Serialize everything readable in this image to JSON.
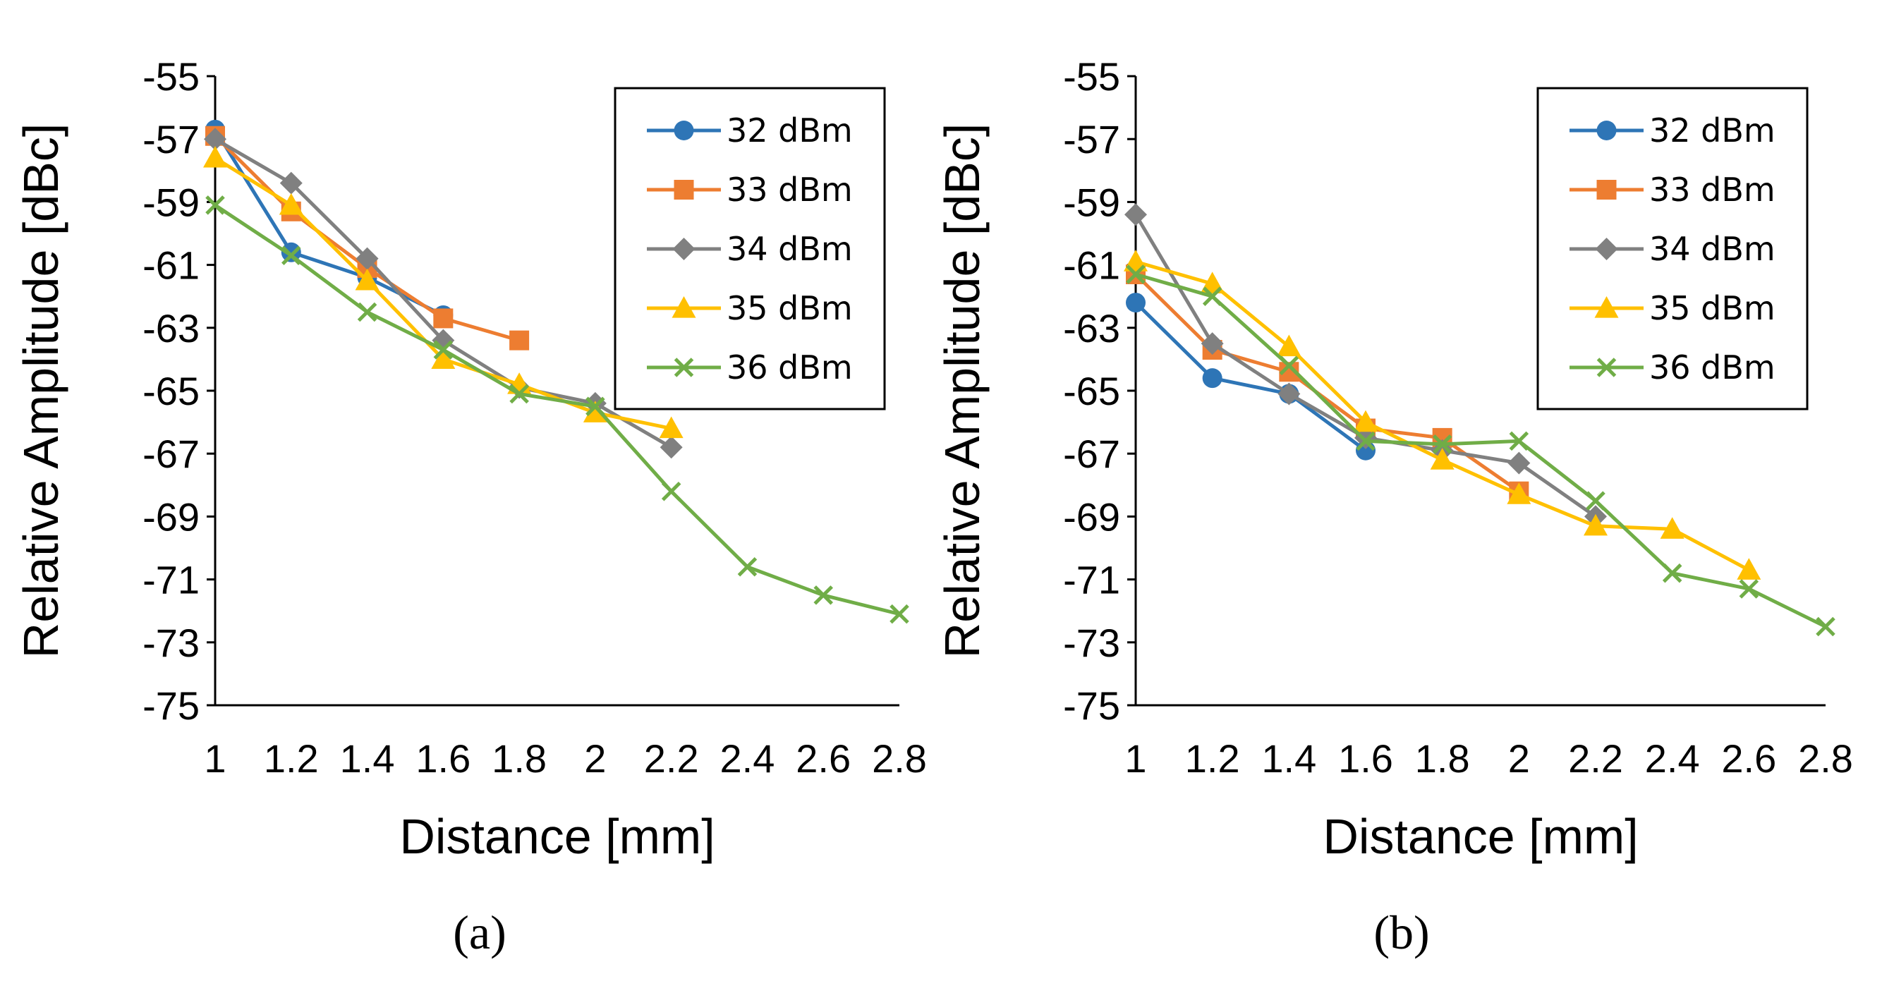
{
  "chart_data": [
    {
      "type": "line",
      "panel_label": "(a)",
      "xlabel": "Distance [mm]",
      "ylabel": "Relative Amplitude [dBc]",
      "xlim": [
        1,
        2.8
      ],
      "ylim": [
        -75,
        -55
      ],
      "x_ticks": [
        "1",
        "1.2",
        "1.4",
        "1.6",
        "1.8",
        "2",
        "2.2",
        "2.4",
        "2.6",
        "2.8"
      ],
      "y_ticks": [
        "-55",
        "-57",
        "-59",
        "-61",
        "-63",
        "-65",
        "-67",
        "-69",
        "-71",
        "-73",
        "-75"
      ],
      "legend_position": "top-right",
      "series": [
        {
          "name": "32 dBm",
          "color": "#2E75B6",
          "marker": "circle",
          "x": [
            1,
            1.2,
            1.4,
            1.6
          ],
          "y": [
            -56.7,
            -60.6,
            -61.4,
            -62.6
          ]
        },
        {
          "name": "33 dBm",
          "color": "#ED7D31",
          "marker": "square",
          "x": [
            1,
            1.2,
            1.4,
            1.6,
            1.8
          ],
          "y": [
            -56.9,
            -59.3,
            -61.1,
            -62.7,
            -63.4
          ]
        },
        {
          "name": "34 dBm",
          "color": "#808080",
          "marker": "diamond",
          "x": [
            1,
            1.2,
            1.4,
            1.6,
            1.8,
            2,
            2.2
          ],
          "y": [
            -57.0,
            -58.4,
            -60.8,
            -63.4,
            -64.9,
            -65.4,
            -66.8
          ]
        },
        {
          "name": "35 dBm",
          "color": "#FFC000",
          "marker": "triangle",
          "x": [
            1,
            1.2,
            1.4,
            1.6,
            1.8,
            2,
            2.2
          ],
          "y": [
            -57.6,
            -59.1,
            -61.5,
            -64.0,
            -64.8,
            -65.7,
            -66.2
          ]
        },
        {
          "name": "36 dBm",
          "color": "#70AD47",
          "marker": "x",
          "x": [
            1,
            1.2,
            1.4,
            1.6,
            1.8,
            2,
            2.2,
            2.4,
            2.6,
            2.8
          ],
          "y": [
            -59.1,
            -60.7,
            -62.5,
            -63.7,
            -65.1,
            -65.5,
            -68.2,
            -70.6,
            -71.5,
            -72.1
          ]
        }
      ]
    },
    {
      "type": "line",
      "panel_label": "(b)",
      "xlabel": "Distance [mm]",
      "ylabel": "Relative Amplitude [dBc]",
      "xlim": [
        1,
        2.8
      ],
      "ylim": [
        -75,
        -55
      ],
      "x_ticks": [
        "1",
        "1.2",
        "1.4",
        "1.6",
        "1.8",
        "2",
        "2.2",
        "2.4",
        "2.6",
        "2.8"
      ],
      "y_ticks": [
        "-55",
        "-57",
        "-59",
        "-61",
        "-63",
        "-65",
        "-67",
        "-69",
        "-71",
        "-73",
        "-75"
      ],
      "legend_position": "top-right",
      "series": [
        {
          "name": "32 dBm",
          "color": "#2E75B6",
          "marker": "circle",
          "x": [
            1,
            1.2,
            1.4,
            1.6
          ],
          "y": [
            -62.2,
            -64.6,
            -65.1,
            -66.9
          ]
        },
        {
          "name": "33 dBm",
          "color": "#ED7D31",
          "marker": "square",
          "x": [
            1,
            1.2,
            1.4,
            1.6,
            1.8,
            2
          ],
          "y": [
            -61.3,
            -63.7,
            -64.4,
            -66.2,
            -66.5,
            -68.2
          ]
        },
        {
          "name": "34 dBm",
          "color": "#808080",
          "marker": "diamond",
          "x": [
            1,
            1.2,
            1.4,
            1.6,
            1.8,
            2,
            2.2
          ],
          "y": [
            -59.4,
            -63.5,
            -65.1,
            -66.5,
            -66.9,
            -67.3,
            -69.0
          ]
        },
        {
          "name": "35 dBm",
          "color": "#FFC000",
          "marker": "triangle",
          "x": [
            1,
            1.2,
            1.4,
            1.6,
            1.8,
            2,
            2.2,
            2.4,
            2.6
          ],
          "y": [
            -60.9,
            -61.6,
            -63.6,
            -66.0,
            -67.2,
            -68.3,
            -69.3,
            -69.4,
            -70.7
          ]
        },
        {
          "name": "36 dBm",
          "color": "#70AD47",
          "marker": "x",
          "x": [
            1,
            1.2,
            1.4,
            1.6,
            1.8,
            2,
            2.2,
            2.4,
            2.6,
            2.8
          ],
          "y": [
            -61.3,
            -62.0,
            -64.2,
            -66.6,
            -66.7,
            -66.6,
            -68.5,
            -70.8,
            -71.3,
            -72.5
          ]
        }
      ]
    }
  ]
}
